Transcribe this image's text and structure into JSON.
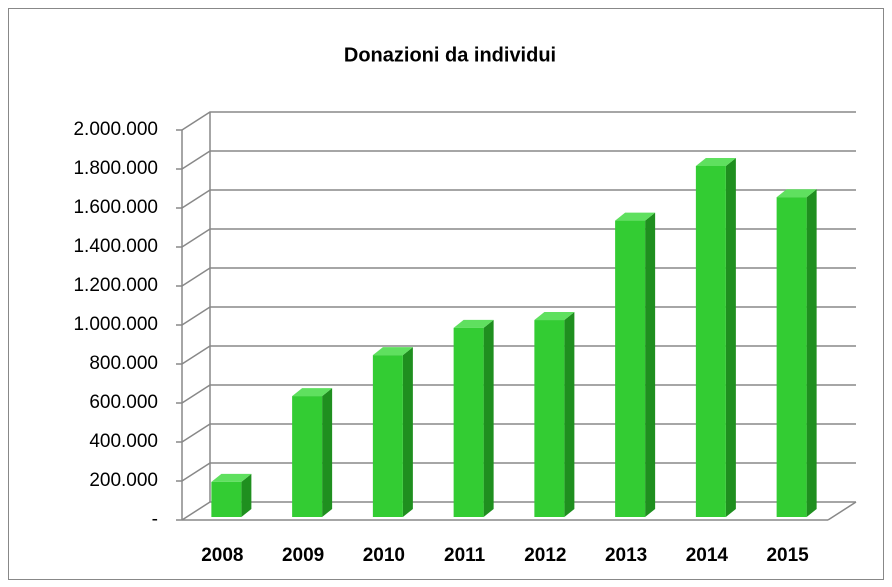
{
  "chart_data": {
    "type": "bar3d",
    "title": "Donazioni da individui",
    "categories": [
      "2008",
      "2009",
      "2010",
      "2011",
      "2012",
      "2013",
      "2014",
      "2015"
    ],
    "values": [
      180000,
      620000,
      830000,
      970000,
      1010000,
      1520000,
      1800000,
      1640000
    ],
    "color": "#33cc33",
    "ylim": [
      0,
      2000000
    ],
    "yticks": [
      {
        "value": 0,
        "label": "-"
      },
      {
        "value": 200000,
        "label": "200.000"
      },
      {
        "value": 400000,
        "label": "400.000"
      },
      {
        "value": 600000,
        "label": "600.000"
      },
      {
        "value": 800000,
        "label": "800.000"
      },
      {
        "value": 1000000,
        "label": "1.000.000"
      },
      {
        "value": 1200000,
        "label": "1.200.000"
      },
      {
        "value": 1400000,
        "label": "1.400.000"
      },
      {
        "value": 1600000,
        "label": "1.600.000"
      },
      {
        "value": 1800000,
        "label": "1.800.000"
      },
      {
        "value": 2000000,
        "label": "2.000.000"
      }
    ],
    "grid": true
  }
}
